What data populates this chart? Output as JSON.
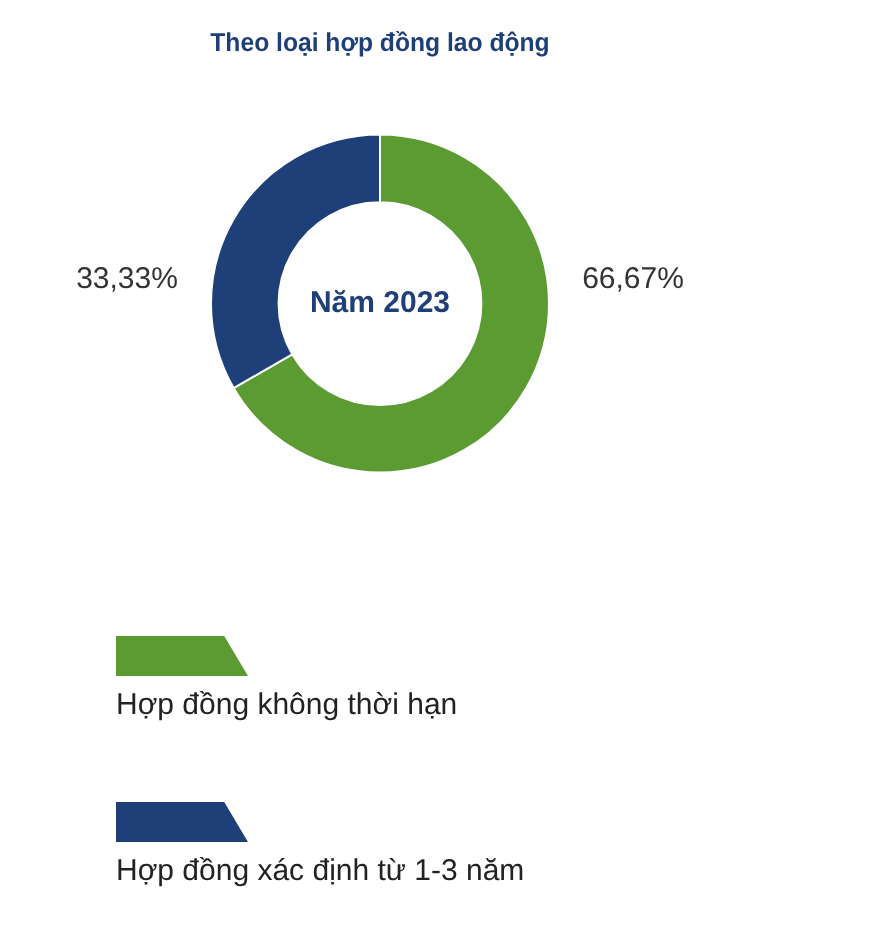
{
  "chart_data": {
    "type": "donut",
    "title": "Theo loại hợp đồng lao động",
    "categories": [
      "Hợp đồng không thời hạn",
      "Hợp đồng xác định từ 1-3 năm"
    ],
    "values": [
      66.67,
      33.33
    ],
    "value_labels": [
      "66,67%",
      "33,33%"
    ],
    "colors": [
      "#5b9b32",
      "#1f3f78"
    ],
    "annotations": [
      "Năm 2023"
    ],
    "legend": "bottom"
  }
}
